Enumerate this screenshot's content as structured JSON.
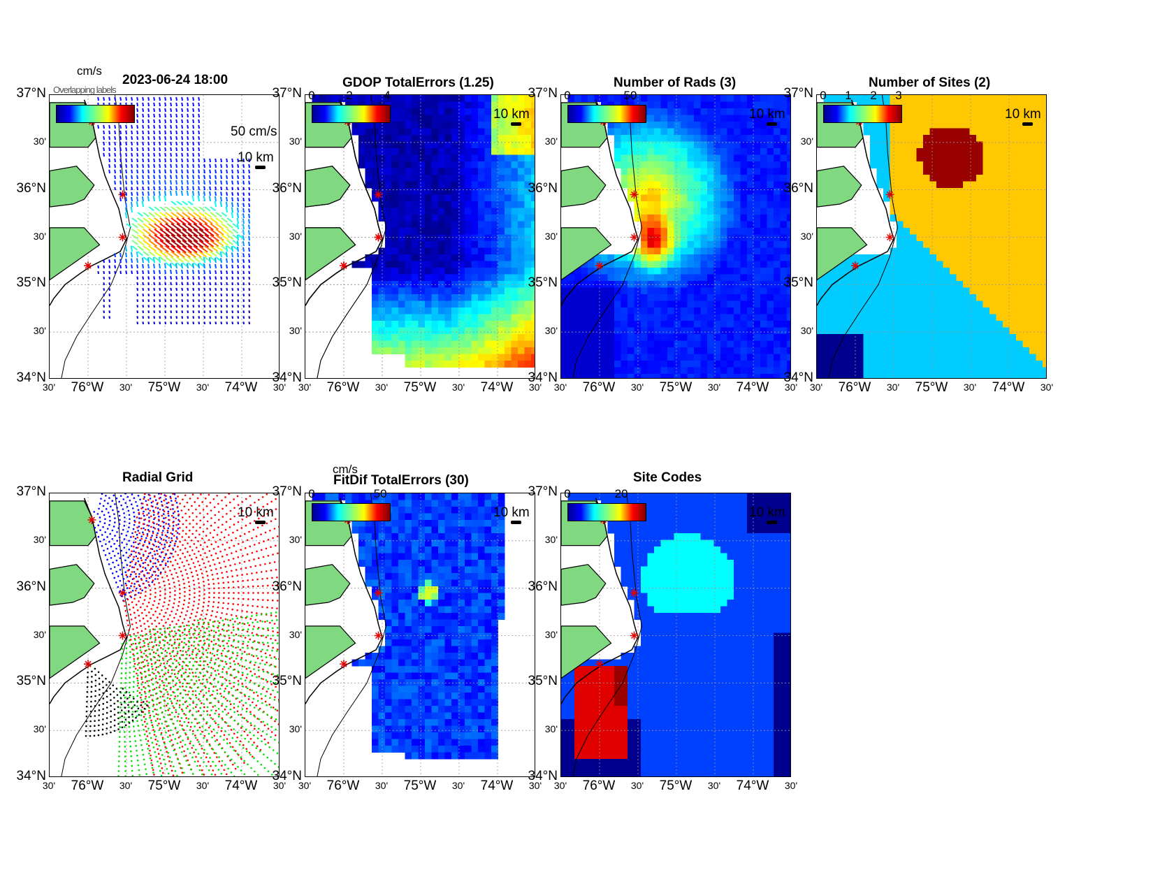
{
  "figure": {
    "axes": {
      "y_labels": [
        "37°N",
        "30'",
        "36°N",
        "30'",
        "35°N",
        "30'",
        "34°N"
      ],
      "x_labels": [
        "30'",
        "76°W",
        "30'",
        "75°W",
        "30'",
        "74°W",
        "30'"
      ]
    },
    "panels": [
      {
        "id": "currents",
        "title": "2023-06-24 18:00",
        "colorbar_unit": "cm/s",
        "colorbar_ticks": [],
        "vector_scale": "50 cm/s",
        "scale_km": "10 km",
        "contour": "-100",
        "overlap_text": "Overlapping labels"
      },
      {
        "id": "gdop",
        "title": "GDOP TotalErrors (1.25)",
        "colorbar_ticks": [
          "0",
          "2",
          "4"
        ],
        "scale_km": "10 km",
        "contour": "1.25"
      },
      {
        "id": "rads",
        "title": "Number of Rads (3)",
        "colorbar_ticks": [
          "0",
          "50"
        ],
        "scale_km": "10 km",
        "contour": "3"
      },
      {
        "id": "sites",
        "title": "Number of Sites (2)",
        "colorbar_ticks": [
          "0",
          "1",
          "2",
          "3"
        ],
        "scale_km": "10 km",
        "contour": "2"
      },
      {
        "id": "radial",
        "title": "Radial Grid",
        "scale_km": "10 km",
        "contour": "-100"
      },
      {
        "id": "fitdif",
        "title": "FitDif TotalErrors (30)",
        "colorbar_unit": "cm/s",
        "colorbar_ticks": [
          "0",
          "50"
        ],
        "scale_km": "10 km",
        "contour": "30"
      },
      {
        "id": "codes",
        "title": "Site Codes",
        "colorbar_ticks": [
          "0",
          "20"
        ],
        "scale_km": "10 km"
      }
    ],
    "colors": {
      "land": "#80d880",
      "site_marker": "#e00000",
      "radial_sites": [
        "#0000ff",
        "#ff0000",
        "#00e000",
        "#000000"
      ],
      "site_code_regions": [
        "#00008f",
        "#0040ff",
        "#00ffff",
        "#e00000",
        "#990000"
      ]
    }
  }
}
